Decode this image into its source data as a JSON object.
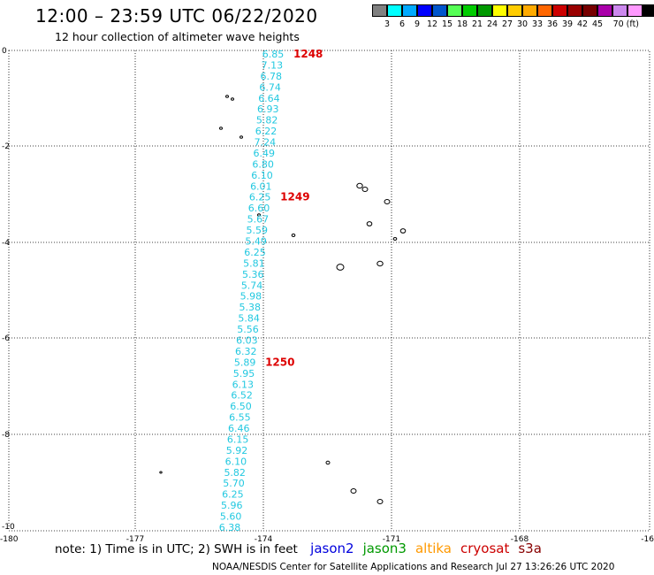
{
  "title": "12:00 – 23:59 UTC 06/22/2020",
  "subtitle": "12 hour collection of altimeter wave heights",
  "colorbar": {
    "colors": [
      "#808080",
      "#00ffff",
      "#00aaff",
      "#0000ff",
      "#0055cc",
      "#55ff55",
      "#00cc00",
      "#009900",
      "#ffff00",
      "#ffcc00",
      "#ffaa00",
      "#ff6600",
      "#cc0000",
      "#990000",
      "#770000",
      "#aa00aa",
      "#cc88ee",
      "#ff99ff",
      "#000000"
    ],
    "labels": [
      "3",
      "6",
      "9",
      "12",
      "15",
      "18",
      "21",
      "24",
      "27",
      "30",
      "33",
      "36",
      "39",
      "42",
      "45",
      "70 (ft)"
    ]
  },
  "map": {
    "x_ticks": [
      "-180",
      "-177",
      "-174",
      "-171",
      "-168",
      "-16"
    ],
    "y_ticks": [
      "0",
      "-2",
      "-4",
      "-6",
      "-8",
      "-10"
    ],
    "swh_values": [
      "6.85",
      "7.13",
      "6.78",
      "6.74",
      "6.64",
      "6.93",
      "5.82",
      "6.22",
      "7.24",
      "6.49",
      "6.80",
      "6.10",
      "6.01",
      "6.25",
      "6.60",
      "5.67",
      "5.59",
      "5.49",
      "6.25",
      "5.81",
      "5.36",
      "5.74",
      "5.98",
      "5.38",
      "5.84",
      "5.56",
      "6.03",
      "6.32",
      "5.89",
      "5.95",
      "6.13",
      "6.52",
      "6.50",
      "6.55",
      "6.46",
      "6.15",
      "5.92",
      "6.10",
      "5.82",
      "5.70",
      "6.25",
      "5.96",
      "5.60",
      "6.38"
    ],
    "orbit_labels": [
      {
        "label": "1248",
        "index": 0
      },
      {
        "label": "1249",
        "index": 13
      },
      {
        "label": "1250",
        "index": 28
      }
    ]
  },
  "note": "note:  1) Time is in UTC;  2) SWH is in feet",
  "satellites": [
    {
      "name": "jason2",
      "color": "#0000dd"
    },
    {
      "name": "jason3",
      "color": "#009900"
    },
    {
      "name": "altika",
      "color": "#ff9900"
    },
    {
      "name": "cryosat",
      "color": "#cc0000"
    },
    {
      "name": "s3a",
      "color": "#880000"
    }
  ],
  "credit": "NOAA/NESDIS Center for Satellite Applications and Research    Jul 27 13:26:26 UTC 2020"
}
